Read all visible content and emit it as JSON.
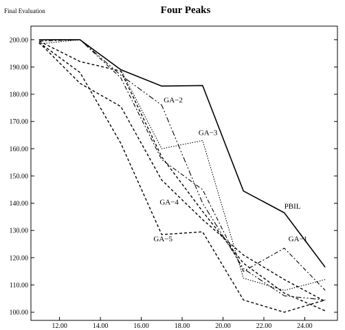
{
  "chart_data": {
    "type": "line",
    "title": "Four Peaks",
    "ylabel": "Final Evaluation",
    "xlabel": "",
    "xlim": [
      10.6,
      25.6
    ],
    "ylim": [
      97,
      205
    ],
    "grid": false,
    "legend": "none (series labeled inline)",
    "x_ticks": [
      "12.00",
      "14.00",
      "16.00",
      "18.00",
      "20.00",
      "22.00",
      "24.00"
    ],
    "y_ticks": [
      "100.00",
      "110.00",
      "120.00",
      "130.00",
      "140.00",
      "150.00",
      "160.00",
      "170.00",
      "180.00",
      "190.00",
      "200.00"
    ],
    "x": [
      11,
      13,
      15,
      17,
      19,
      21,
      23,
      25
    ],
    "series": [
      {
        "name": "PBIL",
        "dash": "",
        "width": 1.6,
        "values": [
          200,
          200,
          189,
          183,
          183.2,
          144.5,
          136.5,
          116.5
        ],
        "label_at": [
          23,
          138
        ]
      },
      {
        "name": "GA−1",
        "dash": "6 3 2 3",
        "width": 1.1,
        "values": [
          199.5,
          200,
          186,
          156,
          145,
          115,
          123.5,
          108
        ],
        "label_at": [
          23.2,
          126
        ]
      },
      {
        "name": "GA−2",
        "dash": "8 3 2 3 2 3",
        "width": 1.1,
        "values": [
          200,
          200,
          187,
          176,
          140,
          116,
          106,
          104.5
        ],
        "label_at": [
          17.1,
          177
        ]
      },
      {
        "name": "GA−3",
        "dash": "1.5 2",
        "width": 1.1,
        "values": [
          198.5,
          200,
          189,
          160,
          163,
          112.5,
          108,
          112
        ],
        "label_at": [
          18.8,
          165
        ]
      },
      {
        "name": "GA−4",
        "dash": "4 3",
        "width": 1.4,
        "values": [
          199,
          184,
          175.5,
          148.5,
          134,
          121,
          112,
          104
        ],
        "label_at": [
          16.9,
          139.5
        ]
      },
      {
        "name": "GA−5",
        "dash": "4 3",
        "width": 1.4,
        "values": [
          199,
          188,
          162,
          128.5,
          129.5,
          104.5,
          100,
          104.5
        ],
        "label_at": [
          16.6,
          126
        ]
      },
      {
        "name": "",
        "dash": "4 3",
        "width": 1.4,
        "values": [
          199.5,
          192,
          188.5,
          157,
          137,
          118,
          107,
          100.5
        ],
        "label_at": null
      }
    ]
  }
}
